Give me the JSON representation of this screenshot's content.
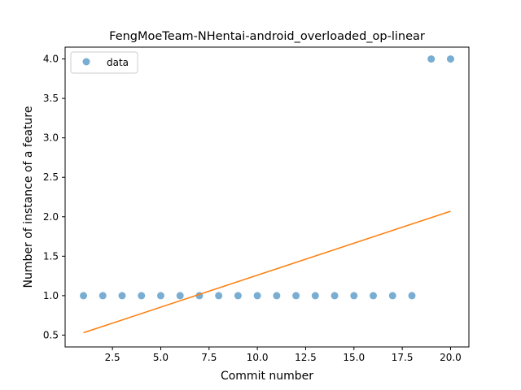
{
  "chart_data": {
    "type": "scatter",
    "title": "FengMoeTeam-NHentai-android_overloaded_op-linear",
    "xlabel": "Commit number",
    "ylabel": "Number of instance of a feature",
    "xlim": [
      0.05,
      20.95
    ],
    "ylim": [
      0.35,
      4.15
    ],
    "x_ticks": [
      2.5,
      5.0,
      7.5,
      10.0,
      12.5,
      15.0,
      17.5,
      20.0
    ],
    "x_tick_labels": [
      "2.5",
      "5.0",
      "7.5",
      "10.0",
      "12.5",
      "15.0",
      "17.5",
      "20.0"
    ],
    "y_ticks": [
      0.5,
      1.0,
      1.5,
      2.0,
      2.5,
      3.0,
      3.5,
      4.0
    ],
    "y_tick_labels": [
      "0.5",
      "1.0",
      "1.5",
      "2.0",
      "2.5",
      "3.0",
      "3.5",
      "4.0"
    ],
    "grid": false,
    "legend_position": "top-left",
    "series": [
      {
        "name": "data",
        "kind": "scatter",
        "color": "#1f77b4",
        "x": [
          1,
          2,
          3,
          4,
          5,
          6,
          7,
          8,
          9,
          10,
          11,
          12,
          13,
          14,
          15,
          16,
          17,
          18,
          19,
          20
        ],
        "y": [
          1,
          1,
          1,
          1,
          1,
          1,
          1,
          1,
          1,
          1,
          1,
          1,
          1,
          1,
          1,
          1,
          1,
          1,
          4,
          4
        ]
      },
      {
        "kind": "line",
        "color": "#ff7f0e",
        "x": [
          1,
          20
        ],
        "y": [
          0.53,
          2.07
        ]
      }
    ]
  }
}
